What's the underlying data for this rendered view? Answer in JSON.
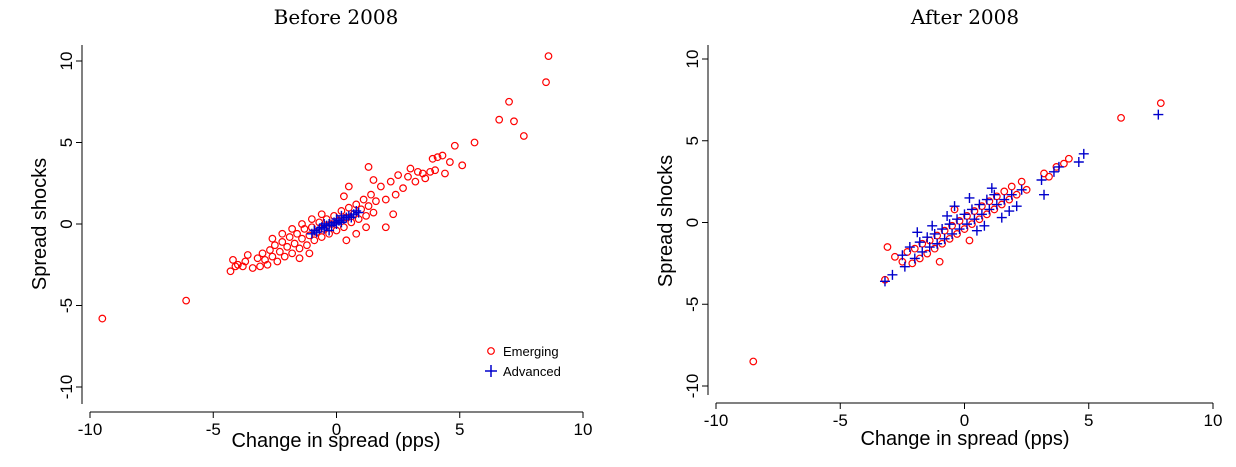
{
  "colors": {
    "emerging": "#ff0000",
    "advanced": "#0000cc"
  },
  "chart_data": [
    {
      "type": "scatter",
      "title": "Before 2008",
      "xlabel": "Change in spread (pps)",
      "ylabel": "Spread shocks",
      "xlim": [
        -10,
        10
      ],
      "ylim": [
        -10,
        10
      ],
      "xticks": [
        "-10",
        "-5",
        "0",
        "5",
        "10"
      ],
      "yticks": [
        "-10",
        "-5",
        "0",
        "5",
        "10"
      ],
      "legend": {
        "position": "bottom-right",
        "entries": [
          "Emerging",
          "Advanced"
        ]
      },
      "series": [
        {
          "name": "Emerging",
          "marker": "circle",
          "color": "#ff0000",
          "points": [
            [
              -9.5,
              -5.8
            ],
            [
              -6.1,
              -4.7
            ],
            [
              -4.3,
              -2.9
            ],
            [
              -4.2,
              -2.2
            ],
            [
              -4.1,
              -2.6
            ],
            [
              -4.0,
              -2.5
            ],
            [
              -3.8,
              -2.6
            ],
            [
              -3.7,
              -2.3
            ],
            [
              -3.6,
              -1.9
            ],
            [
              -3.4,
              -2.7
            ],
            [
              -3.2,
              -2.1
            ],
            [
              -3.1,
              -2.6
            ],
            [
              -3.0,
              -1.8
            ],
            [
              -2.9,
              -2.2
            ],
            [
              -2.8,
              -2.5
            ],
            [
              -2.7,
              -1.6
            ],
            [
              -2.6,
              -2.0
            ],
            [
              -2.5,
              -1.3
            ],
            [
              -2.4,
              -2.3
            ],
            [
              -2.3,
              -1.7
            ],
            [
              -2.2,
              -1.1
            ],
            [
              -2.1,
              -2.0
            ],
            [
              -2.0,
              -1.4
            ],
            [
              -1.9,
              -0.8
            ],
            [
              -1.8,
              -1.8
            ],
            [
              -1.7,
              -1.2
            ],
            [
              -1.6,
              -0.6
            ],
            [
              -1.5,
              -1.5
            ],
            [
              -1.4,
              -0.9
            ],
            [
              -1.3,
              -0.3
            ],
            [
              -1.2,
              -1.3
            ],
            [
              -1.1,
              -0.7
            ],
            [
              -1.0,
              -0.2
            ],
            [
              -0.9,
              -1.0
            ],
            [
              -0.8,
              -0.5
            ],
            [
              -0.7,
              0.1
            ],
            [
              -0.6,
              -0.8
            ],
            [
              -0.5,
              -0.3
            ],
            [
              -0.4,
              0.3
            ],
            [
              -0.3,
              -0.6
            ],
            [
              -0.2,
              0.0
            ],
            [
              -0.1,
              0.5
            ],
            [
              0.0,
              -0.4
            ],
            [
              0.1,
              0.2
            ],
            [
              0.2,
              0.8
            ],
            [
              0.3,
              -0.2
            ],
            [
              0.4,
              0.4
            ],
            [
              0.5,
              1.0
            ],
            [
              0.6,
              0.1
            ],
            [
              0.7,
              0.6
            ],
            [
              0.8,
              1.2
            ],
            [
              0.9,
              0.3
            ],
            [
              1.0,
              0.9
            ],
            [
              1.1,
              1.5
            ],
            [
              1.2,
              0.5
            ],
            [
              1.3,
              1.1
            ],
            [
              1.4,
              1.8
            ],
            [
              1.5,
              0.7
            ],
            [
              1.6,
              1.4
            ],
            [
              -2.6,
              -0.9
            ],
            [
              -2.2,
              -0.6
            ],
            [
              -1.8,
              -0.3
            ],
            [
              -1.4,
              0.0
            ],
            [
              -1.0,
              0.3
            ],
            [
              -0.6,
              0.6
            ],
            [
              0.4,
              -1.0
            ],
            [
              0.8,
              -0.6
            ],
            [
              1.2,
              -0.2
            ],
            [
              -1.5,
              -2.1
            ],
            [
              -1.1,
              -1.8
            ],
            [
              1.8,
              2.3
            ],
            [
              2.0,
              1.5
            ],
            [
              2.2,
              2.6
            ],
            [
              2.4,
              1.8
            ],
            [
              2.5,
              3.0
            ],
            [
              2.7,
              2.2
            ],
            [
              2.9,
              2.9
            ],
            [
              3.0,
              3.4
            ],
            [
              3.2,
              2.6
            ],
            [
              3.3,
              3.2
            ],
            [
              3.5,
              3.1
            ],
            [
              3.6,
              2.8
            ],
            [
              3.8,
              3.2
            ],
            [
              3.9,
              4.0
            ],
            [
              4.0,
              3.3
            ],
            [
              4.1,
              4.1
            ],
            [
              4.3,
              4.2
            ],
            [
              4.4,
              3.1
            ],
            [
              4.6,
              3.8
            ],
            [
              4.8,
              4.8
            ],
            [
              5.1,
              3.6
            ],
            [
              5.6,
              5.0
            ],
            [
              2.3,
              0.6
            ],
            [
              2.0,
              -0.2
            ],
            [
              1.5,
              2.7
            ],
            [
              1.3,
              3.5
            ],
            [
              0.3,
              1.7
            ],
            [
              0.5,
              2.3
            ],
            [
              6.6,
              6.4
            ],
            [
              7.0,
              7.5
            ],
            [
              7.2,
              6.3
            ],
            [
              7.6,
              5.4
            ],
            [
              8.5,
              8.7
            ],
            [
              8.6,
              10.3
            ]
          ]
        },
        {
          "name": "Advanced",
          "marker": "plus",
          "color": "#0000cc",
          "points": [
            [
              -1.0,
              -0.6
            ],
            [
              -0.8,
              -0.5
            ],
            [
              -0.7,
              -0.3
            ],
            [
              -0.6,
              -0.2
            ],
            [
              -0.5,
              -0.3
            ],
            [
              -0.4,
              -0.1
            ],
            [
              -0.3,
              0.0
            ],
            [
              -0.2,
              -0.1
            ],
            [
              -0.1,
              0.1
            ],
            [
              0.0,
              0.0
            ],
            [
              0.1,
              0.2
            ],
            [
              0.2,
              0.1
            ],
            [
              0.3,
              0.3
            ],
            [
              0.4,
              0.4
            ],
            [
              0.5,
              0.5
            ],
            [
              0.6,
              0.4
            ],
            [
              0.7,
              0.6
            ],
            [
              0.8,
              0.8
            ],
            [
              -0.5,
              0.0
            ],
            [
              0.0,
              0.3
            ],
            [
              -0.3,
              -0.4
            ],
            [
              0.2,
              0.5
            ],
            [
              0.9,
              0.7
            ],
            [
              -0.9,
              -0.4
            ]
          ]
        }
      ]
    },
    {
      "type": "scatter",
      "title": "After 2008",
      "xlabel": "Change in spread (pps)",
      "ylabel": "Spread shocks",
      "xlim": [
        -10,
        10
      ],
      "ylim": [
        -10,
        10
      ],
      "xticks": [
        "-10",
        "-5",
        "0",
        "5",
        "10"
      ],
      "yticks": [
        "-10",
        "-5",
        "0",
        "5",
        "10"
      ],
      "series": [
        {
          "name": "Emerging",
          "marker": "circle",
          "color": "#ff0000",
          "points": [
            [
              -8.5,
              -8.5
            ],
            [
              -3.2,
              -3.5
            ],
            [
              -3.1,
              -1.5
            ],
            [
              -2.8,
              -2.1
            ],
            [
              -2.5,
              -2.4
            ],
            [
              -2.3,
              -1.8
            ],
            [
              -2.1,
              -2.5
            ],
            [
              -2.0,
              -1.6
            ],
            [
              -1.8,
              -2.2
            ],
            [
              -1.7,
              -1.3
            ],
            [
              -1.5,
              -1.9
            ],
            [
              -1.4,
              -1.1
            ],
            [
              -1.2,
              -1.6
            ],
            [
              -1.1,
              -0.8
            ],
            [
              -0.9,
              -1.3
            ],
            [
              -0.8,
              -0.5
            ],
            [
              -0.6,
              -1.0
            ],
            [
              -0.5,
              -0.2
            ],
            [
              -0.3,
              -0.7
            ],
            [
              -0.2,
              0.1
            ],
            [
              0.0,
              -0.4
            ],
            [
              0.1,
              0.4
            ],
            [
              0.3,
              -0.1
            ],
            [
              0.4,
              0.7
            ],
            [
              0.6,
              0.2
            ],
            [
              0.7,
              1.0
            ],
            [
              0.9,
              0.5
            ],
            [
              1.0,
              1.3
            ],
            [
              1.2,
              0.8
            ],
            [
              1.3,
              1.6
            ],
            [
              1.5,
              1.1
            ],
            [
              1.6,
              1.9
            ],
            [
              1.8,
              1.4
            ],
            [
              1.9,
              2.2
            ],
            [
              2.1,
              1.7
            ],
            [
              2.3,
              2.5
            ],
            [
              2.5,
              2.0
            ],
            [
              -1.0,
              -2.4
            ],
            [
              -0.4,
              0.8
            ],
            [
              0.2,
              -1.1
            ],
            [
              3.2,
              3.0
            ],
            [
              3.4,
              2.8
            ],
            [
              3.7,
              3.4
            ],
            [
              4.0,
              3.6
            ],
            [
              4.2,
              3.9
            ],
            [
              6.3,
              6.4
            ],
            [
              7.9,
              7.3
            ]
          ]
        },
        {
          "name": "Advanced",
          "marker": "plus",
          "color": "#0000cc",
          "points": [
            [
              -3.2,
              -3.6
            ],
            [
              -2.9,
              -3.2
            ],
            [
              -2.5,
              -2.0
            ],
            [
              -2.4,
              -2.7
            ],
            [
              -2.2,
              -1.5
            ],
            [
              -2.0,
              -2.2
            ],
            [
              -1.8,
              -1.2
            ],
            [
              -1.7,
              -1.8
            ],
            [
              -1.5,
              -0.9
            ],
            [
              -1.4,
              -1.5
            ],
            [
              -1.2,
              -0.7
            ],
            [
              -1.1,
              -1.3
            ],
            [
              -0.9,
              -0.4
            ],
            [
              -0.8,
              -1.0
            ],
            [
              -0.6,
              -0.1
            ],
            [
              -0.5,
              -0.7
            ],
            [
              -0.3,
              0.2
            ],
            [
              -0.2,
              -0.4
            ],
            [
              0.0,
              0.5
            ],
            [
              0.1,
              -0.1
            ],
            [
              0.3,
              0.8
            ],
            [
              0.4,
              0.2
            ],
            [
              0.6,
              1.1
            ],
            [
              0.7,
              0.5
            ],
            [
              0.9,
              1.4
            ],
            [
              1.0,
              0.8
            ],
            [
              1.2,
              1.7
            ],
            [
              1.3,
              1.1
            ],
            [
              1.5,
              0.3
            ],
            [
              1.6,
              1.4
            ],
            [
              1.8,
              0.7
            ],
            [
              1.9,
              1.7
            ],
            [
              2.1,
              1.0
            ],
            [
              2.3,
              2.0
            ],
            [
              -0.7,
              0.4
            ],
            [
              -0.4,
              1.0
            ],
            [
              0.2,
              1.5
            ],
            [
              0.5,
              -0.5
            ],
            [
              0.8,
              -0.2
            ],
            [
              1.1,
              2.1
            ],
            [
              -1.3,
              -0.2
            ],
            [
              -1.9,
              -0.6
            ],
            [
              3.1,
              2.6
            ],
            [
              3.2,
              1.7
            ],
            [
              3.6,
              3.1
            ],
            [
              3.8,
              3.4
            ],
            [
              4.6,
              3.7
            ],
            [
              4.8,
              4.2
            ],
            [
              7.8,
              6.6
            ]
          ]
        }
      ]
    }
  ]
}
